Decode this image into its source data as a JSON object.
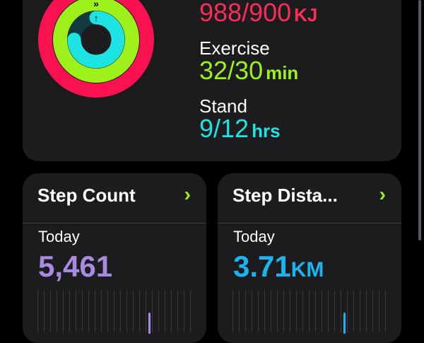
{
  "activity": {
    "move": {
      "value": "988/900",
      "unit": "KJ",
      "progress": 1.098,
      "color": "#fa114f"
    },
    "exercise": {
      "label": "Exercise",
      "value": "32/30",
      "unit": "min",
      "progress": 1.067,
      "color": "#9ef01a"
    },
    "stand": {
      "label": "Stand",
      "value": "9/12",
      "unit": "hrs",
      "progress": 0.75,
      "color": "#1ee3e3"
    }
  },
  "tiles": [
    {
      "title": "Step Count",
      "period": "Today",
      "value": "5,461",
      "unit": "",
      "color": "#a78be0",
      "chevron": "chevron-right-icon"
    },
    {
      "title": "Step Dista...",
      "period": "Today",
      "value": "3.71",
      "unit": "KM",
      "color": "#1ab4f0",
      "chevron": "chevron-right-icon"
    }
  ]
}
